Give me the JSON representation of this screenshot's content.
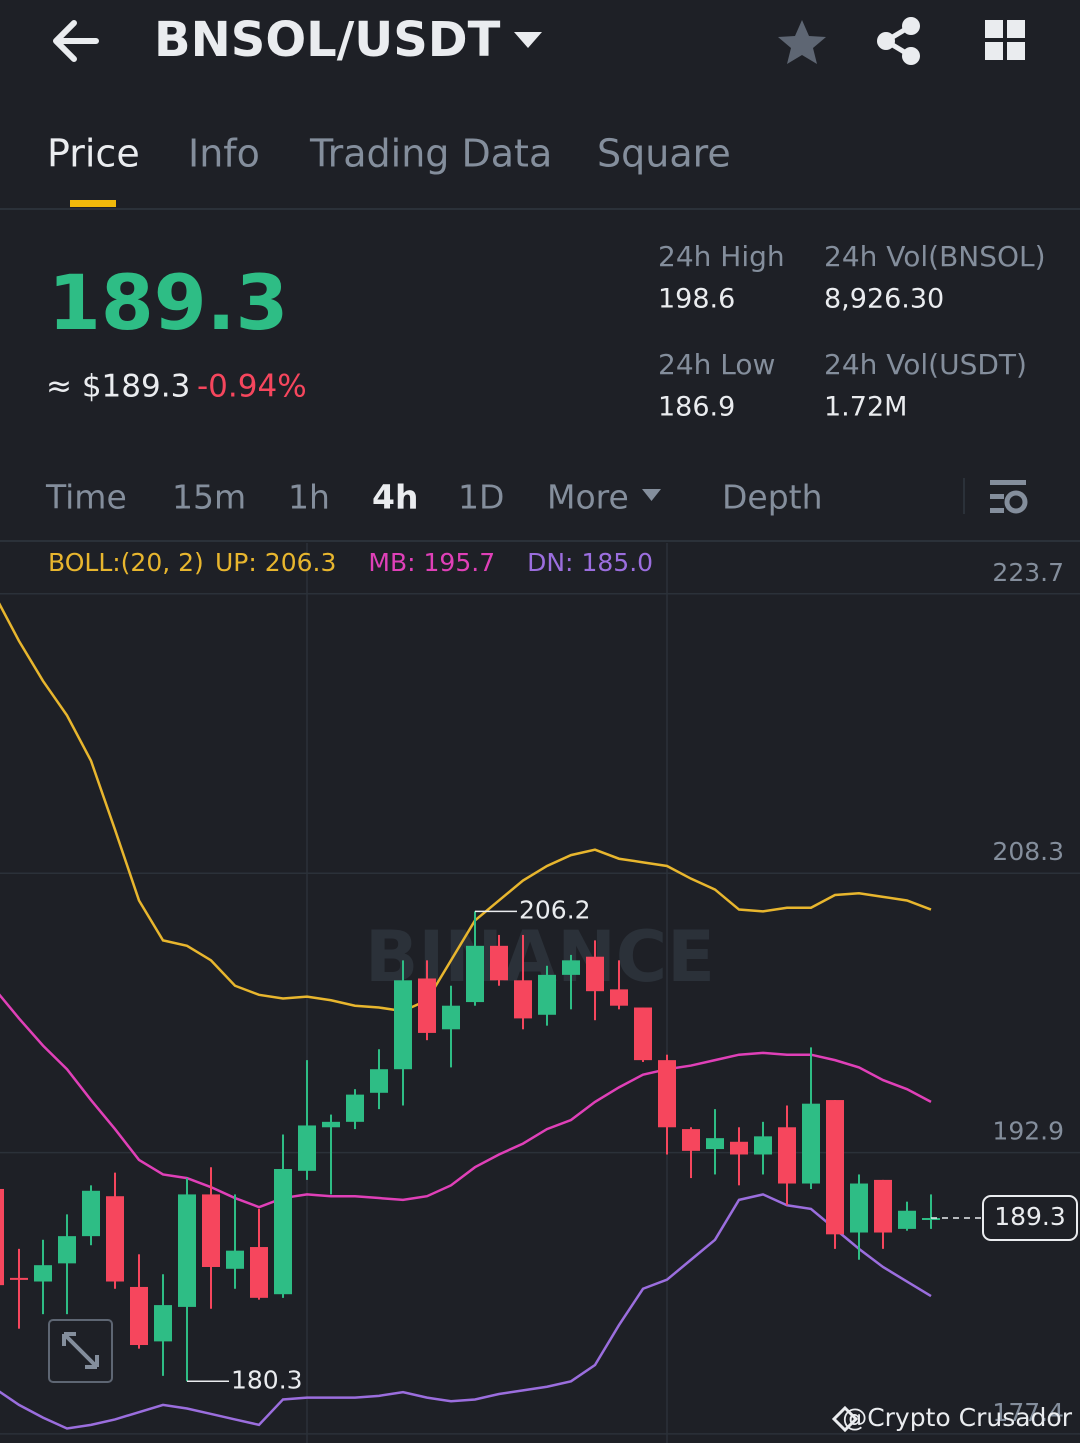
{
  "header": {
    "pair": "BNSOL/USDT"
  },
  "tabs": [
    "Price",
    "Info",
    "Trading Data",
    "Square"
  ],
  "ticker": {
    "price": "189.3",
    "usd": "≈ $189.3",
    "change": "-0.94%"
  },
  "stats": [
    {
      "label": "24h High",
      "value": "198.6"
    },
    {
      "label": "24h Vol(BNSOL)",
      "value": "8,926.30"
    },
    {
      "label": "24h Low",
      "value": "186.9"
    },
    {
      "label": "24h Vol(USDT)",
      "value": "1.72M"
    }
  ],
  "intervals": [
    "Time",
    "15m",
    "1h",
    "4h",
    "1D",
    "More",
    "Depth"
  ],
  "chart_data": {
    "type": "candlestick",
    "indicator": "BOLL:(20, 2)",
    "watermark": "BINANCE",
    "up_color": "#2ebd85",
    "down_color": "#f6465d",
    "open": [
      190.9,
      186.0,
      185.8,
      186.8,
      188.3,
      190.5,
      185.5,
      182.5,
      184.4,
      190.6,
      186.5,
      187.7,
      185.1,
      191.9,
      194.3,
      194.6,
      196.2,
      197.5,
      202.5,
      199.7,
      201.2,
      204.3,
      202.4,
      200.5,
      202.7,
      203.7,
      201.9,
      200.9,
      198.0,
      194.2,
      193.1,
      193.5,
      192.8,
      194.3,
      191.2,
      195.8,
      188.5,
      191.4,
      188.7,
      189.2
    ],
    "high": [
      191.1,
      187.6,
      188.1,
      189.5,
      191.1,
      191.8,
      187.3,
      186.2,
      191.5,
      192.1,
      190.6,
      189.8,
      193.9,
      198.0,
      195.0,
      196.4,
      198.6,
      203.5,
      203.5,
      202.1,
      206.2,
      204.9,
      204.9,
      203.2,
      203.8,
      204.6,
      203.5,
      200.9,
      198.3,
      194.3,
      195.3,
      194.3,
      194.6,
      195.5,
      198.7,
      195.8,
      191.7,
      191.4,
      190.2,
      190.6
    ],
    "low": [
      185.1,
      183.2,
      184.0,
      184.0,
      187.8,
      185.4,
      182.1,
      180.6,
      180.3,
      184.3,
      185.4,
      184.8,
      184.9,
      191.4,
      190.6,
      194.2,
      195.3,
      195.5,
      199.1,
      197.6,
      201.0,
      202.1,
      199.7,
      199.9,
      200.8,
      200.2,
      200.8,
      197.9,
      192.8,
      191.5,
      191.7,
      191.1,
      191.7,
      190.0,
      190.9,
      187.6,
      187.0,
      187.6,
      188.6,
      188.7
    ],
    "close": [
      185.6,
      185.9,
      186.7,
      188.3,
      190.8,
      185.8,
      182.3,
      184.5,
      190.6,
      186.6,
      187.5,
      184.9,
      192.0,
      194.4,
      194.6,
      196.1,
      197.5,
      202.4,
      199.5,
      201.0,
      204.3,
      202.4,
      200.3,
      202.7,
      203.5,
      201.8,
      201.0,
      198.0,
      194.3,
      193.0,
      193.7,
      192.8,
      193.8,
      191.2,
      195.6,
      188.4,
      191.2,
      188.5,
      189.7,
      189.3
    ],
    "bands": [
      {
        "name": "UP:",
        "last_label": "206.3",
        "color": "#e8b62e",
        "values": [
          223.6,
          221.1,
          218.9,
          217.0,
          214.5,
          210.7,
          206.8,
          204.6,
          204.3,
          203.5,
          202.1,
          201.6,
          201.4,
          201.5,
          201.3,
          201.0,
          200.9,
          200.7,
          201.3,
          203.5,
          205.7,
          206.8,
          207.9,
          208.7,
          209.3,
          209.6,
          209.1,
          208.9,
          208.7,
          208.0,
          207.4,
          206.3,
          206.2,
          206.4,
          206.4,
          207.1,
          207.2,
          207.0,
          206.8,
          206.3
        ]
      },
      {
        "name": "MB:",
        "last_label": "195.7",
        "color": "#e040b8",
        "values": [
          201.9,
          200.3,
          198.8,
          197.5,
          195.8,
          194.2,
          192.5,
          191.7,
          191.5,
          191.0,
          190.4,
          189.9,
          190.4,
          190.6,
          190.5,
          190.5,
          190.4,
          190.3,
          190.5,
          191.1,
          192.1,
          192.8,
          193.4,
          194.2,
          194.7,
          195.7,
          196.5,
          197.2,
          197.5,
          197.7,
          198.0,
          198.3,
          198.4,
          198.3,
          198.3,
          198.0,
          197.6,
          196.9,
          196.4,
          195.7
        ]
      },
      {
        "name": "DN:",
        "last_label": "185.0",
        "color": "#9b6ede",
        "values": [
          179.9,
          179.0,
          178.3,
          177.7,
          177.9,
          178.2,
          178.6,
          179.0,
          178.8,
          178.5,
          178.2,
          177.9,
          179.3,
          179.4,
          179.4,
          179.4,
          179.5,
          179.7,
          179.4,
          179.2,
          179.3,
          179.6,
          179.8,
          180.0,
          180.3,
          181.2,
          183.4,
          185.4,
          185.9,
          187.0,
          188.1,
          190.3,
          190.6,
          190.0,
          189.8,
          188.7,
          187.6,
          186.6,
          185.8,
          185.0
        ]
      }
    ],
    "ylim": [
      176.9,
      226.5
    ],
    "yticks": [
      177.4,
      192.9,
      208.3,
      223.7
    ],
    "grid": true
  },
  "credit": "@Crypto Crusador"
}
